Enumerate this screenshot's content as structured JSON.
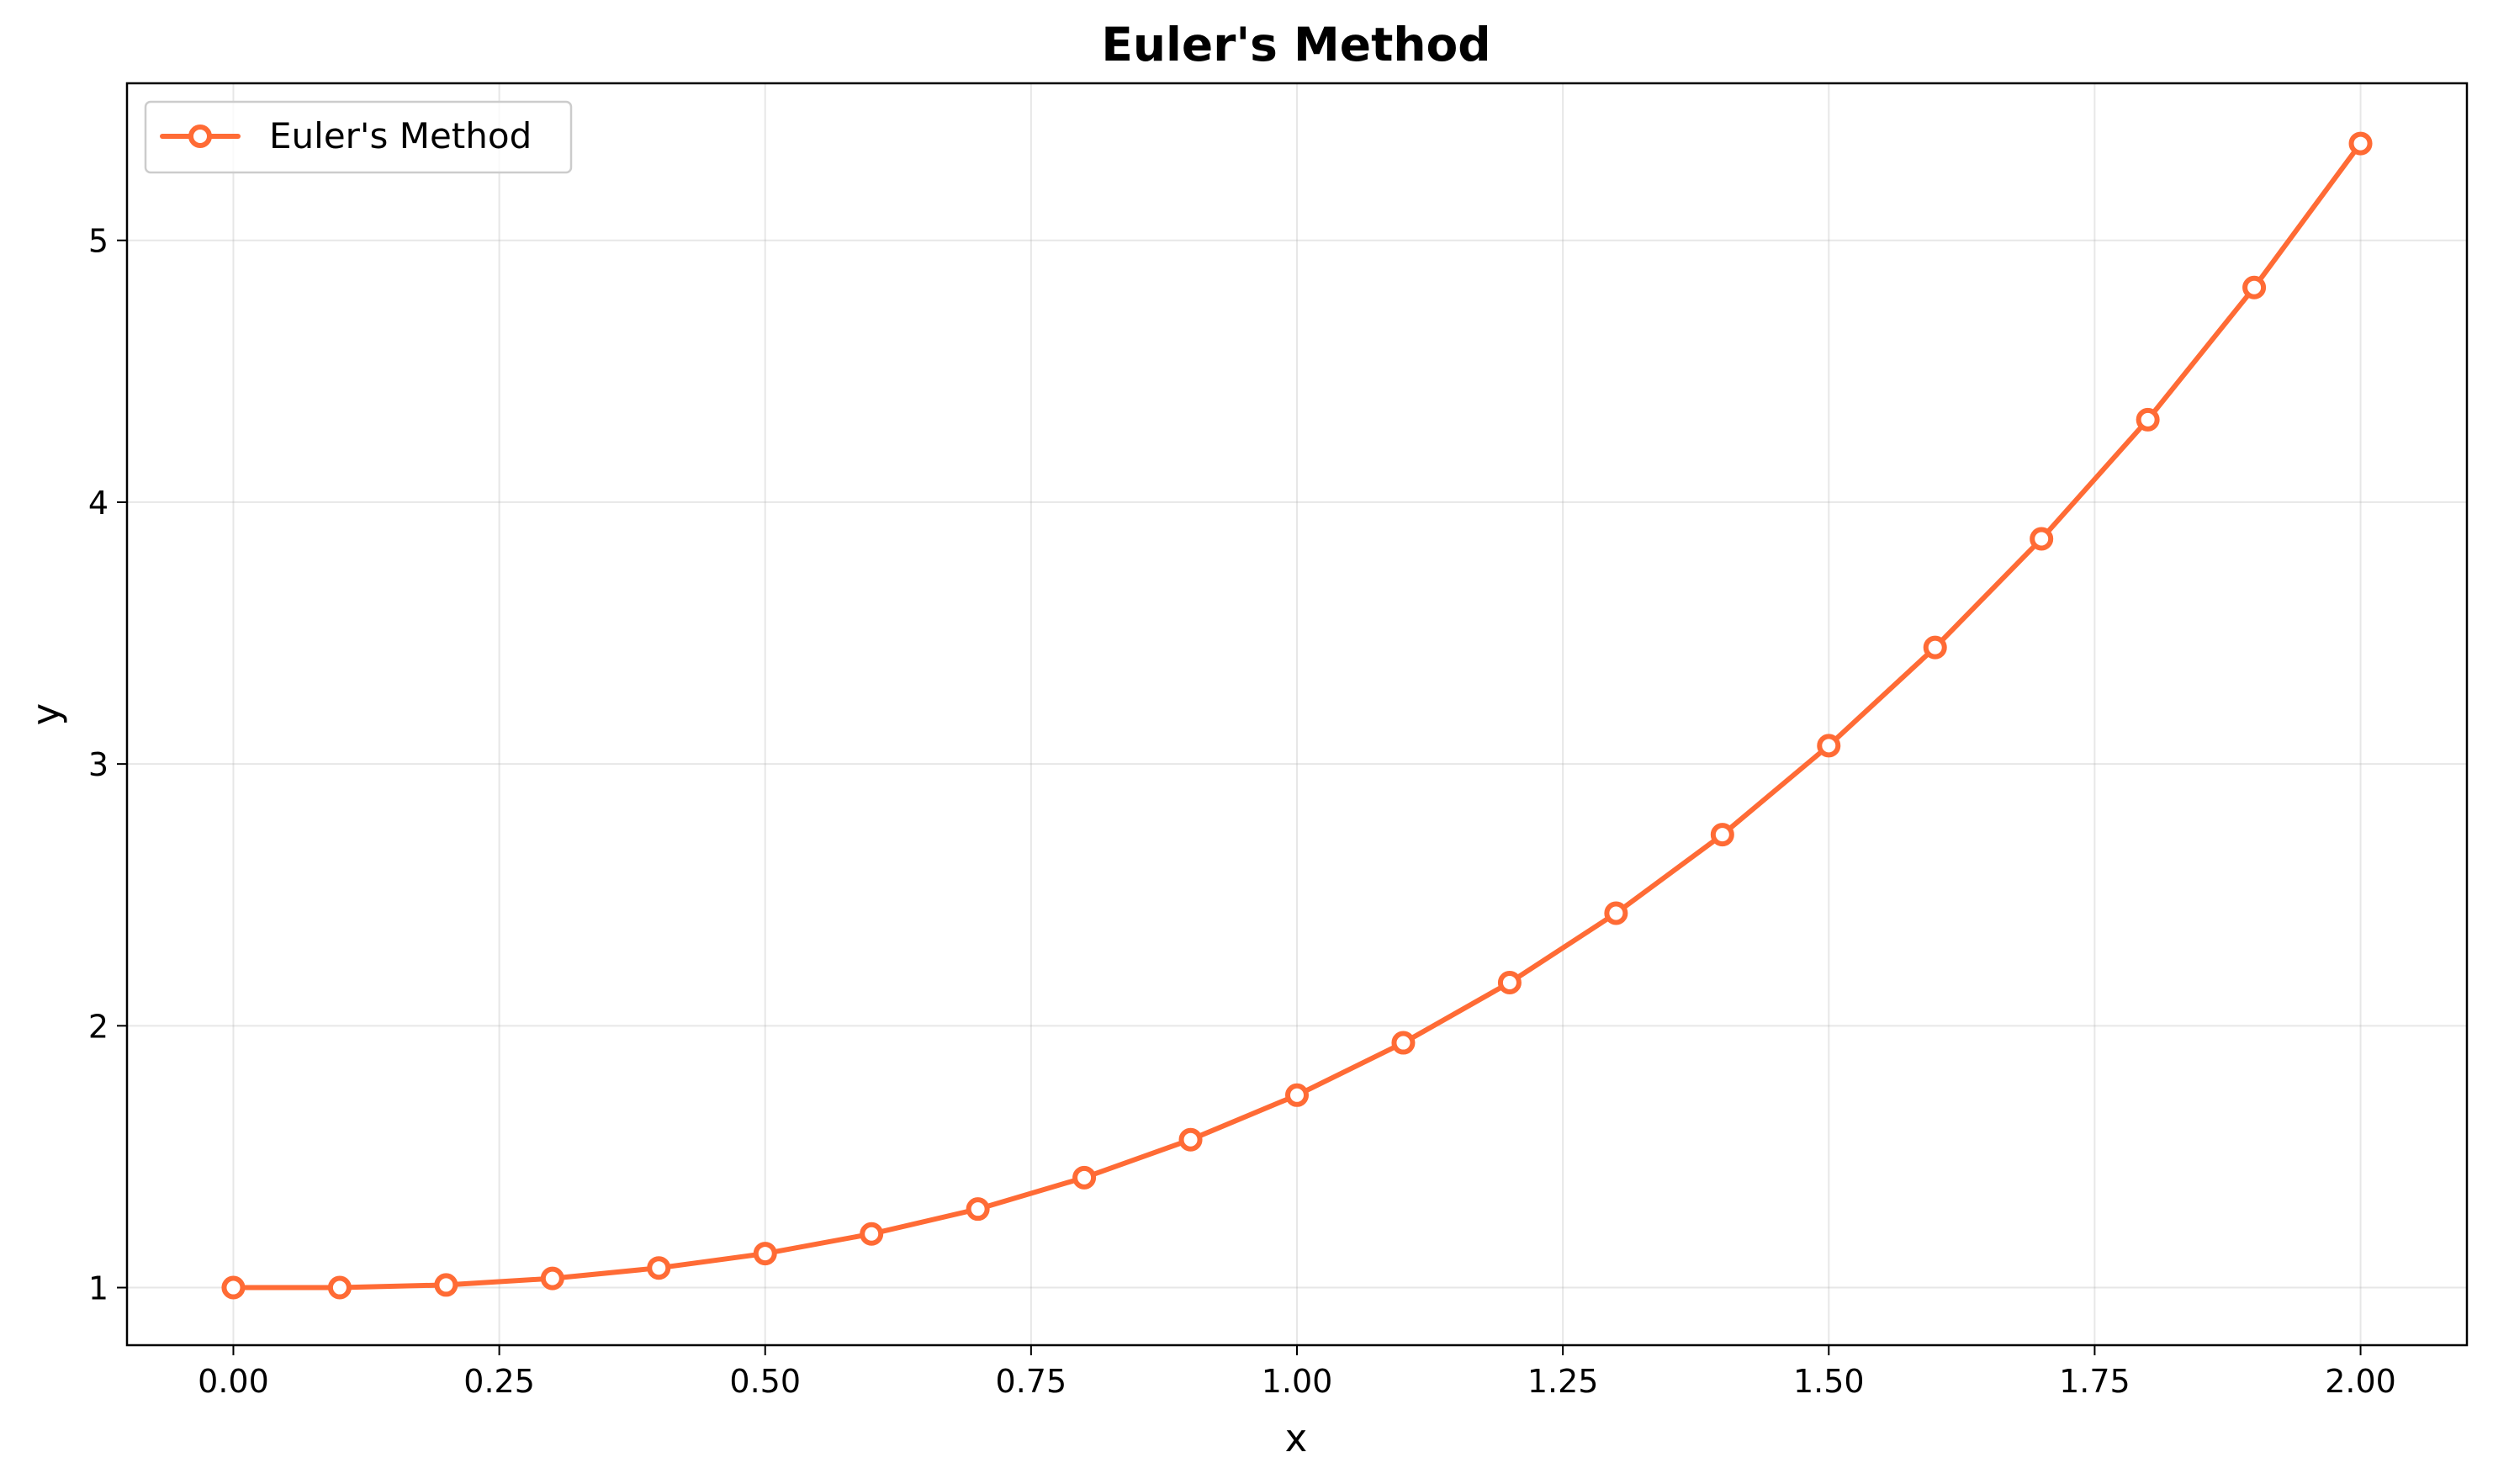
{
  "chart_data": {
    "type": "line",
    "title": "Euler's Method",
    "xlabel": "x",
    "ylabel": "y",
    "xlim": [
      -0.1,
      2.1
    ],
    "ylim": [
      0.78,
      5.6
    ],
    "xticks": [
      0.0,
      0.25,
      0.5,
      0.75,
      1.0,
      1.25,
      1.5,
      1.75,
      2.0
    ],
    "xtick_labels": [
      "0.00",
      "0.25",
      "0.50",
      "0.75",
      "1.00",
      "1.25",
      "1.50",
      "1.75",
      "2.00"
    ],
    "yticks": [
      1,
      2,
      3,
      4,
      5
    ],
    "ytick_labels": [
      "1",
      "2",
      "3",
      "4",
      "5"
    ],
    "grid": true,
    "legend_position": "top-left",
    "series": [
      {
        "name": "Euler's Method",
        "color": "#ff6b35",
        "marker": "open-circle",
        "x": [
          0.0,
          0.1,
          0.2,
          0.3,
          0.4,
          0.5,
          0.6,
          0.7,
          0.8,
          0.9,
          1.0,
          1.1,
          1.2,
          1.3,
          1.4,
          1.5,
          1.6,
          1.7,
          1.8,
          1.9,
          2.0
        ],
        "y": [
          1.0,
          1.0,
          1.01,
          1.035,
          1.075,
          1.13,
          1.205,
          1.3,
          1.42,
          1.565,
          1.735,
          1.935,
          2.165,
          2.43,
          2.73,
          3.07,
          3.445,
          3.86,
          4.315,
          4.82,
          5.37
        ]
      }
    ]
  }
}
